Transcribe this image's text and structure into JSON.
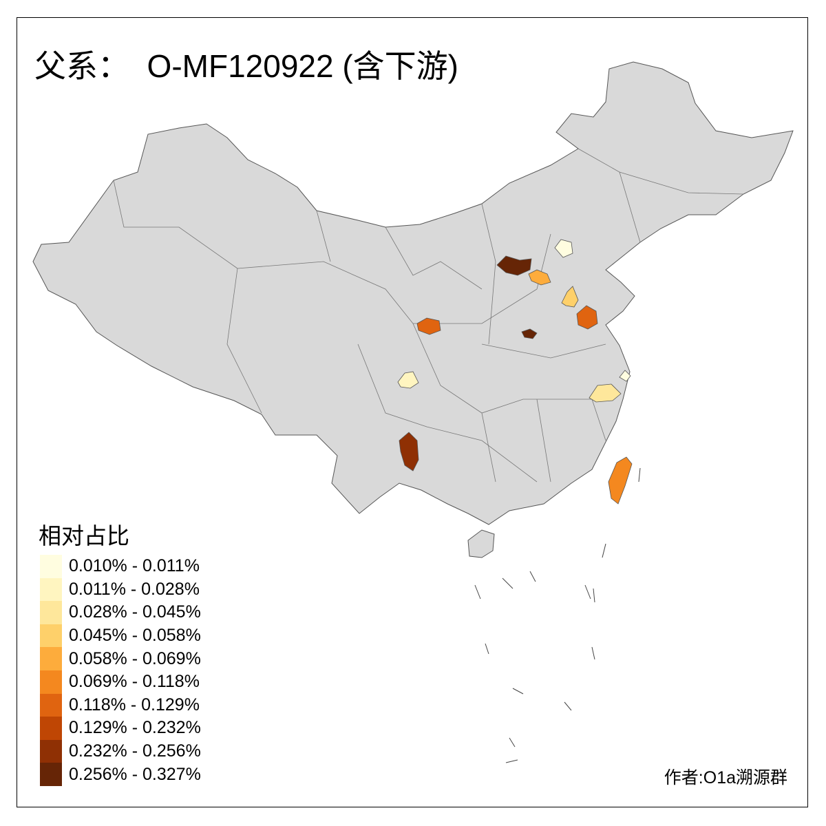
{
  "title": "父系：  O-MF120922 (含下游)",
  "legend": {
    "title": "相对占比",
    "classes": [
      {
        "label": "0.010% - 0.011%",
        "color": "#FFFDE0"
      },
      {
        "label": "0.011% - 0.028%",
        "color": "#FFF5C0"
      },
      {
        "label": "0.028% - 0.045%",
        "color": "#FEE79B"
      },
      {
        "label": "0.045% - 0.058%",
        "color": "#FED06A"
      },
      {
        "label": "0.058% - 0.069%",
        "color": "#FDAC3C"
      },
      {
        "label": "0.069% - 0.118%",
        "color": "#F4881F"
      },
      {
        "label": "0.118% - 0.129%",
        "color": "#E06410"
      },
      {
        "label": "0.129% - 0.232%",
        "color": "#BF4604"
      },
      {
        "label": "0.232% - 0.256%",
        "color": "#8F3004"
      },
      {
        "label": "0.256% - 0.327%",
        "color": "#662506"
      }
    ]
  },
  "map": {
    "base_color": "#D9D9D9",
    "border_color": "#555555",
    "shaded_region_classes": [
      9,
      0,
      4,
      3,
      6,
      9,
      6,
      1,
      0,
      2,
      8,
      5
    ]
  },
  "author": "作者:O1a溯源群"
}
